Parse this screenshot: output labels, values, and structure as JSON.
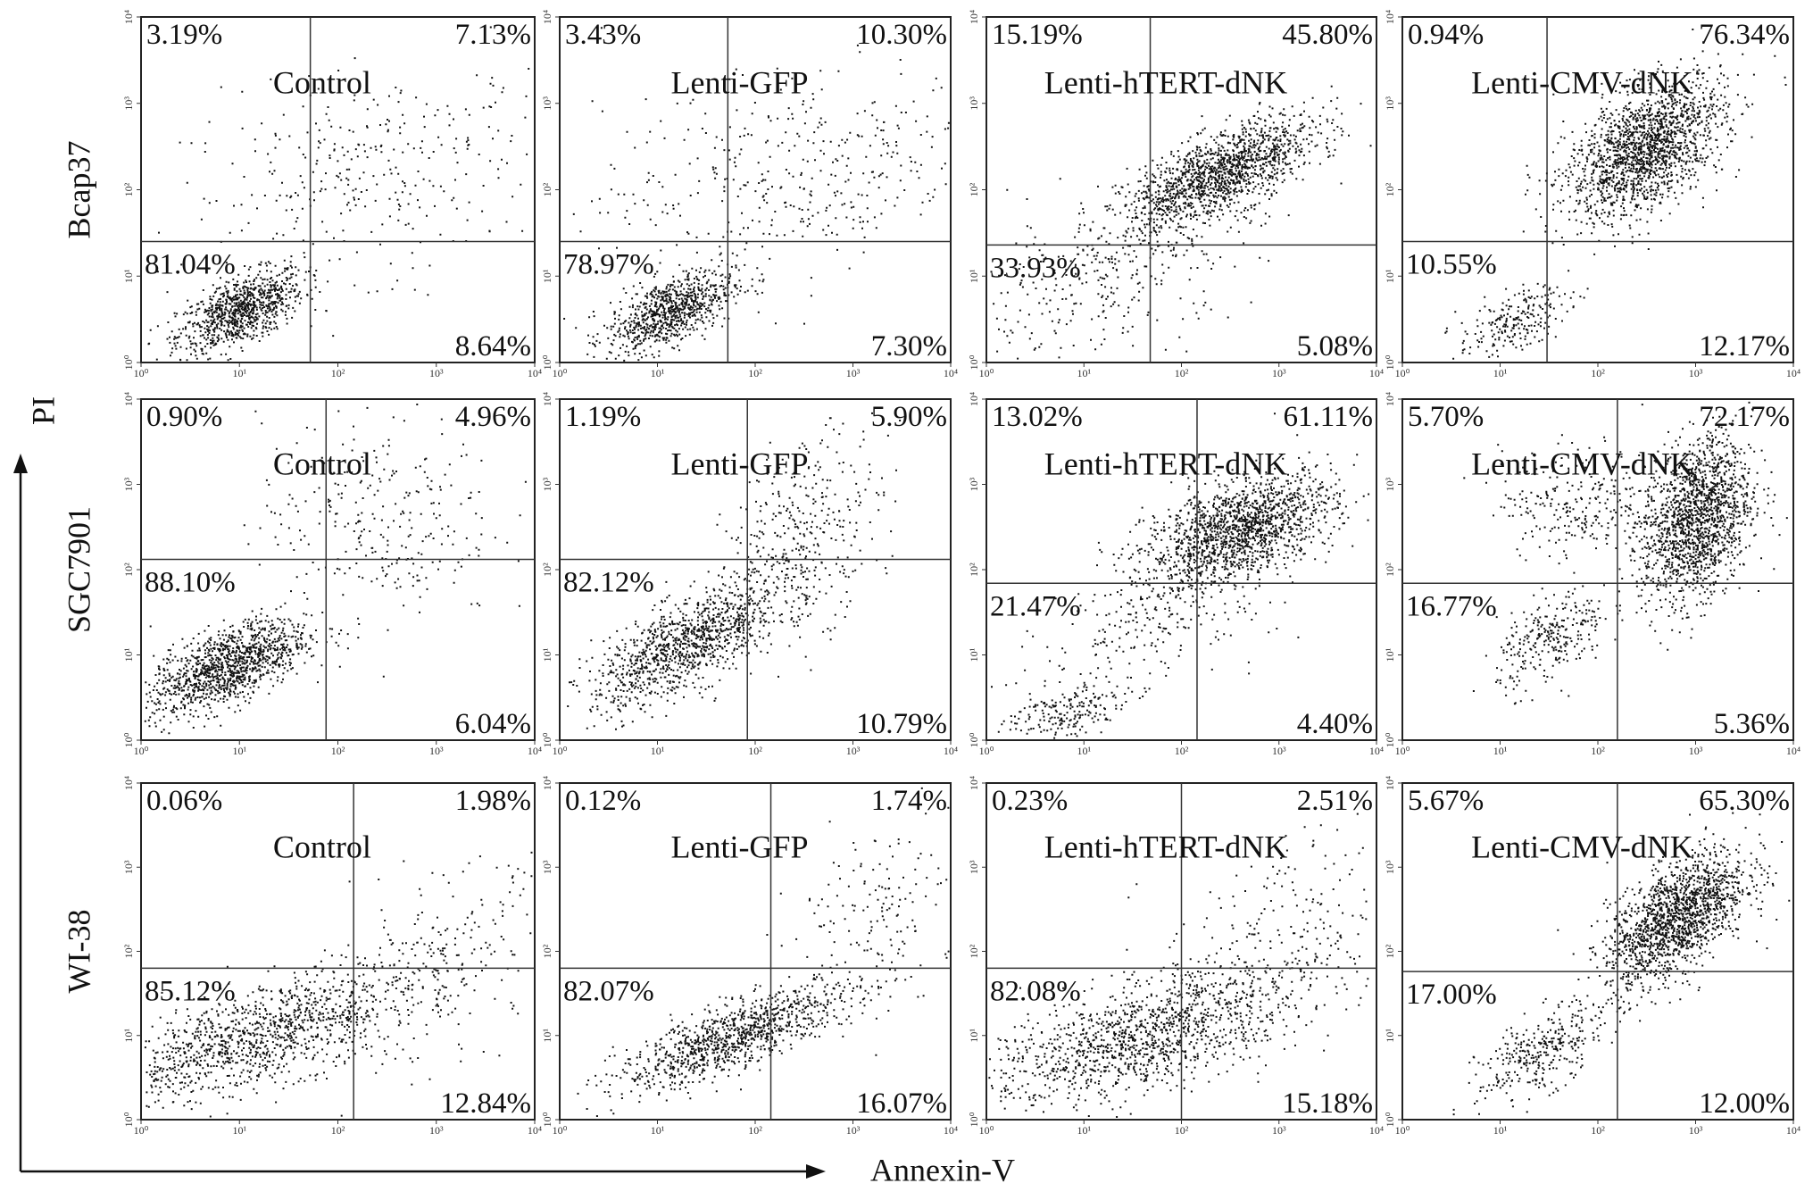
{
  "xlabel": "Annexin-V",
  "ylabel": "PI",
  "row_labels": [
    "Bcap37",
    "SGC7901",
    "WI-38"
  ],
  "chart_data": [
    {
      "type": "scatter",
      "title": "Control",
      "quadrant_values": [
        3.19,
        7.13,
        81.04,
        8.64
      ],
      "quadrant_labels": [
        "3.19%",
        "7.13%",
        "81.04%",
        "8.64%"
      ]
    },
    {
      "type": "scatter",
      "title": "Lenti-GFP",
      "quadrant_values": [
        3.43,
        10.3,
        78.97,
        7.3
      ],
      "quadrant_labels": [
        "3.43%",
        "10.30%",
        "78.97%",
        "7.30%"
      ]
    },
    {
      "type": "scatter",
      "title": "Lenti-hTERT-dNK",
      "quadrant_values": [
        15.19,
        45.8,
        33.93,
        5.08
      ],
      "quadrant_labels": [
        "15.19%",
        "45.80%",
        "33.93%",
        "5.08%"
      ]
    },
    {
      "type": "scatter",
      "title": "Lenti-CMV-dNK",
      "quadrant_values": [
        0.94,
        76.34,
        10.55,
        12.17
      ],
      "quadrant_labels": [
        "0.94%",
        "76.34%",
        "10.55%",
        "12.17%"
      ]
    },
    {
      "type": "scatter",
      "title": "Control",
      "quadrant_values": [
        0.9,
        4.96,
        88.1,
        6.04
      ],
      "quadrant_labels": [
        "0.90%",
        "4.96%",
        "88.10%",
        "6.04%"
      ]
    },
    {
      "type": "scatter",
      "title": "Lenti-GFP",
      "quadrant_values": [
        1.19,
        5.9,
        82.12,
        10.79
      ],
      "quadrant_labels": [
        "1.19%",
        "5.90%",
        "82.12%",
        "10.79%"
      ]
    },
    {
      "type": "scatter",
      "title": "Lenti-hTERT-dNK",
      "quadrant_values": [
        13.02,
        61.11,
        21.47,
        4.4
      ],
      "quadrant_labels": [
        "13.02%",
        "61.11%",
        "21.47%",
        "4.40%"
      ]
    },
    {
      "type": "scatter",
      "title": "Lenti-CMV-dNK",
      "quadrant_values": [
        5.7,
        72.17,
        16.77,
        5.36
      ],
      "quadrant_labels": [
        "5.70%",
        "72.17%",
        "16.77%",
        "5.36%"
      ]
    },
    {
      "type": "scatter",
      "title": "Control",
      "quadrant_values": [
        0.06,
        1.98,
        85.12,
        12.84
      ],
      "quadrant_labels": [
        "0.06%",
        "1.98%",
        "85.12%",
        "12.84%"
      ]
    },
    {
      "type": "scatter",
      "title": "Lenti-GFP",
      "quadrant_values": [
        0.12,
        1.74,
        82.07,
        16.07
      ],
      "quadrant_labels": [
        "0.12%",
        "1.74%",
        "82.07%",
        "16.07%"
      ]
    },
    {
      "type": "scatter",
      "title": "Lenti-hTERT-dNK",
      "quadrant_values": [
        0.23,
        2.51,
        82.08,
        15.18
      ],
      "quadrant_labels": [
        "0.23%",
        "2.51%",
        "82.08%",
        "15.18%"
      ]
    },
    {
      "type": "scatter",
      "title": "Lenti-CMV-dNK",
      "quadrant_values": [
        5.67,
        65.3,
        17.0,
        12.0
      ],
      "quadrant_labels": [
        "5.67%",
        "65.30%",
        "17.00%",
        "12.00%"
      ]
    }
  ],
  "log_scale": true,
  "xlim": [
    1,
    10000
  ],
  "ylim": [
    1,
    10000
  ],
  "xticks": [
    {
      "value": 1,
      "label": "10⁰"
    },
    {
      "value": 10,
      "label": "10¹"
    },
    {
      "value": 100,
      "label": "10²"
    },
    {
      "value": 1000,
      "label": "10³"
    },
    {
      "value": 10000,
      "label": "10⁴"
    }
  ],
  "yticks": [
    {
      "value": 1,
      "label": "10⁰"
    },
    {
      "value": 10,
      "label": "10¹"
    },
    {
      "value": 100,
      "label": "10²"
    },
    {
      "value": 1000,
      "label": "10³"
    },
    {
      "value": 10000,
      "label": "10⁴"
    }
  ]
}
